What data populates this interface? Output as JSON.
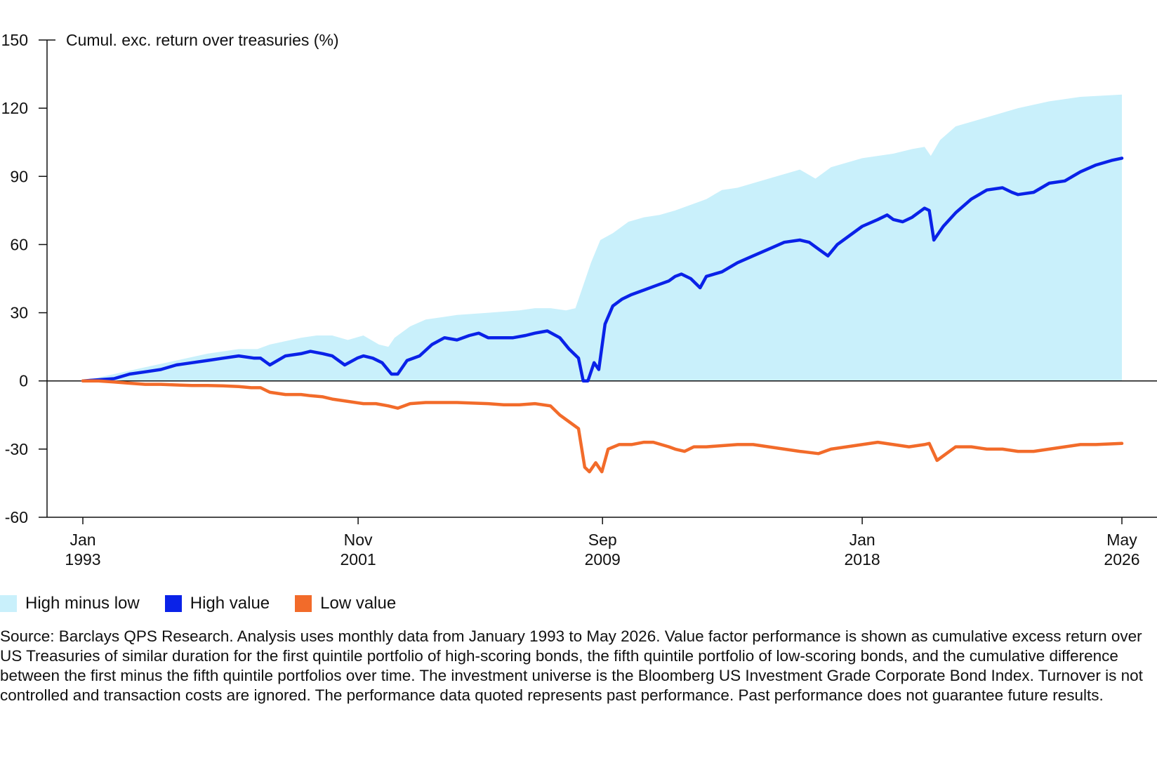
{
  "chart_data": {
    "type": "line",
    "ylabel": "Cumul. exc. return over treasuries (%)",
    "ylim": [
      -60,
      150
    ],
    "yticks": [
      "150",
      "120",
      "90",
      "60",
      "30",
      "0",
      "-30",
      "-60"
    ],
    "xlim": [
      1993.0,
      2026.33
    ],
    "xticks": [
      {
        "line1": "Jan",
        "line2": "1993",
        "x": 1993.0
      },
      {
        "line1": "Nov",
        "line2": "2001",
        "x": 2001.83
      },
      {
        "line1": "Sep",
        "line2": "2009",
        "x": 2009.67
      },
      {
        "line1": "Jan",
        "line2": "2018",
        "x": 2018.0
      },
      {
        "line1": "May",
        "line2": "2026",
        "x": 2026.33
      }
    ],
    "grid": false,
    "legend_position": "bottom-left",
    "series": [
      {
        "name": "High minus low",
        "kind": "area",
        "color": "#c9f0fb",
        "x": [
          1993.0,
          1994.0,
          1995.0,
          1996.0,
          1997.0,
          1998.0,
          1998.6,
          1999.0,
          2000.0,
          2000.5,
          2001.0,
          2001.5,
          2002.0,
          2002.5,
          2002.8,
          2003.0,
          2003.5,
          2004.0,
          2005.0,
          2006.0,
          2007.0,
          2007.5,
          2008.0,
          2008.5,
          2008.8,
          2009.0,
          2009.3,
          2009.6,
          2010.0,
          2010.5,
          2011.0,
          2011.5,
          2012.0,
          2013.0,
          2013.5,
          2014.0,
          2015.0,
          2016.0,
          2016.5,
          2017.0,
          2018.0,
          2018.5,
          2019.0,
          2019.6,
          2020.0,
          2020.2,
          2020.5,
          2021.0,
          2022.0,
          2023.0,
          2024.0,
          2025.0,
          2026.33
        ],
        "values": [
          0,
          3,
          6,
          9,
          12,
          14,
          14,
          16,
          19,
          20,
          20,
          18,
          20,
          16,
          15,
          19,
          24,
          27,
          29,
          30,
          31,
          32,
          32,
          31,
          32,
          40,
          52,
          62,
          65,
          70,
          72,
          73,
          75,
          80,
          84,
          85,
          89,
          93,
          89,
          94,
          98,
          99,
          100,
          102,
          103,
          99,
          106,
          112,
          116,
          120,
          123,
          125,
          126
        ]
      },
      {
        "name": "High value",
        "kind": "line",
        "color": "#0a22e8",
        "x": [
          1993.0,
          1993.5,
          1994.0,
          1994.5,
          1995.0,
          1995.5,
          1996.0,
          1996.5,
          1997.0,
          1997.5,
          1998.0,
          1998.5,
          1998.7,
          1999.0,
          1999.5,
          2000.0,
          2000.3,
          2000.7,
          2001.0,
          2001.4,
          2001.8,
          2002.0,
          2002.3,
          2002.6,
          2002.9,
          2003.1,
          2003.4,
          2003.8,
          2004.2,
          2004.6,
          2005.0,
          2005.4,
          2005.7,
          2006.0,
          2006.4,
          2006.8,
          2007.2,
          2007.5,
          2007.9,
          2008.3,
          2008.6,
          2008.9,
          2009.05,
          2009.2,
          2009.4,
          2009.55,
          2009.75,
          2010.0,
          2010.3,
          2010.6,
          2011.0,
          2011.4,
          2011.8,
          2012.0,
          2012.2,
          2012.5,
          2012.8,
          2013.0,
          2013.5,
          2014.0,
          2014.5,
          2015.0,
          2015.5,
          2016.0,
          2016.3,
          2016.6,
          2016.9,
          2017.2,
          2017.6,
          2018.0,
          2018.5,
          2018.8,
          2019.0,
          2019.3,
          2019.6,
          2020.0,
          2020.15,
          2020.3,
          2020.6,
          2021.0,
          2021.5,
          2022.0,
          2022.5,
          2022.8,
          2023.0,
          2023.5,
          2024.0,
          2024.5,
          2025.0,
          2025.5,
          2026.0,
          2026.33
        ],
        "values": [
          0,
          0.5,
          1,
          3,
          4,
          5,
          7,
          8,
          9,
          10,
          11,
          10,
          10,
          7,
          11,
          12,
          13,
          12,
          11,
          7,
          10,
          11,
          10,
          8,
          3,
          3,
          9,
          11,
          16,
          19,
          18,
          20,
          21,
          19,
          19,
          19,
          20,
          21,
          22,
          19,
          14,
          10,
          0,
          0,
          8,
          5,
          25,
          33,
          36,
          38,
          40,
          42,
          44,
          46,
          47,
          45,
          41,
          46,
          48,
          52,
          55,
          58,
          61,
          62,
          61,
          58,
          55,
          60,
          64,
          68,
          71,
          73,
          71,
          70,
          72,
          76,
          75,
          62,
          68,
          74,
          80,
          84,
          85,
          83,
          82,
          83,
          87,
          88,
          92,
          95,
          97,
          98
        ]
      },
      {
        "name": "Low value",
        "kind": "line",
        "color": "#f26b2a",
        "x": [
          1993.0,
          1993.5,
          1994.0,
          1994.5,
          1995.0,
          1995.5,
          1996.0,
          1996.5,
          1997.0,
          1997.5,
          1998.0,
          1998.4,
          1998.7,
          1999.0,
          1999.5,
          2000.0,
          2000.3,
          2000.7,
          2001.0,
          2001.5,
          2002.0,
          2002.4,
          2002.8,
          2003.1,
          2003.5,
          2004.0,
          2005.0,
          2006.0,
          2006.5,
          2007.0,
          2007.5,
          2008.0,
          2008.3,
          2008.6,
          2008.9,
          2009.1,
          2009.25,
          2009.45,
          2009.65,
          2009.85,
          2010.2,
          2010.6,
          2011.0,
          2011.3,
          2011.8,
          2012.0,
          2012.3,
          2012.6,
          2013.0,
          2013.5,
          2014.0,
          2014.5,
          2015.0,
          2015.5,
          2016.0,
          2016.3,
          2016.6,
          2017.0,
          2017.5,
          2018.0,
          2018.5,
          2019.0,
          2019.5,
          2020.0,
          2020.15,
          2020.4,
          2020.8,
          2021.0,
          2021.5,
          2022.0,
          2022.5,
          2023.0,
          2023.5,
          2024.0,
          2024.5,
          2025.0,
          2025.5,
          2026.33
        ],
        "values": [
          0,
          0,
          -0.5,
          -1,
          -1.5,
          -1.5,
          -1.8,
          -2,
          -2,
          -2.2,
          -2.5,
          -3,
          -3,
          -5,
          -6,
          -6,
          -6.5,
          -7,
          -8,
          -9,
          -10,
          -10,
          -11,
          -12,
          -10,
          -9.5,
          -9.5,
          -10,
          -10.5,
          -10.5,
          -10,
          -11,
          -15,
          -18,
          -21,
          -38,
          -40,
          -36,
          -40,
          -30,
          -28,
          -28,
          -27,
          -27,
          -29,
          -30,
          -31,
          -29,
          -29,
          -28.5,
          -28,
          -28,
          -29,
          -30,
          -31,
          -31.5,
          -32,
          -30,
          -29,
          -28,
          -27,
          -28,
          -29,
          -28,
          -27.5,
          -35,
          -31,
          -29,
          -29,
          -30,
          -30,
          -31,
          -31,
          -30,
          -29,
          -28,
          -28,
          -27.5
        ]
      }
    ],
    "source": "Source: Barclays QPS Research. Analysis uses monthly data from January 1993 to May 2026. Value factor performance is shown as cumulative excess return over US Treasuries of similar duration for the first quintile portfolio of high-scoring bonds, the fifth quintile portfolio of low-scoring bonds, and the cumulative difference between the first minus the fifth quintile portfolios over time. The investment universe is the Bloomberg US Investment Grade Corporate Bond Index. Turnover is not controlled and transaction costs are ignored. The performance data quoted represents past performance. Past performance does not guarantee future results."
  }
}
